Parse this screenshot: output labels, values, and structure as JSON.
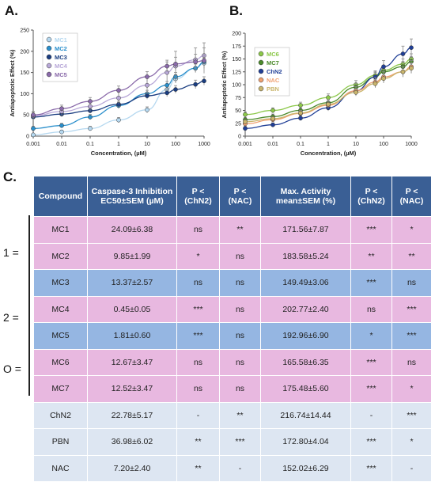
{
  "panels": {
    "a": "A.",
    "b": "B.",
    "c": "C."
  },
  "chart_data": [
    {
      "type": "line",
      "xscale": "log",
      "xlim": [
        0.001,
        1000
      ],
      "ylim": [
        0,
        250
      ],
      "xticks": [
        "0.001",
        "0.01",
        "0.1",
        "1",
        "10",
        "100",
        "1000"
      ],
      "yticks": [
        "0",
        "50",
        "100",
        "150",
        "200",
        "250"
      ],
      "xlabel": "Concentration, (µM)",
      "ylabel": "Antiapoptotic Effect (%)",
      "legend": "top-left",
      "x": [
        0.001,
        0.01,
        0.1,
        1,
        10,
        50,
        100,
        500,
        1000
      ],
      "series": [
        {
          "name": "MC1",
          "color": "#b5d8f0",
          "values": [
            3,
            10,
            18,
            38,
            62,
            110,
            135,
            160,
            172
          ],
          "errors": [
            3,
            4,
            5,
            6,
            7,
            9,
            10,
            10,
            12
          ]
        },
        {
          "name": "MC2",
          "color": "#2a8fcc",
          "values": [
            18,
            25,
            45,
            72,
            100,
            120,
            140,
            160,
            175
          ],
          "errors": [
            5,
            5,
            6,
            7,
            8,
            9,
            10,
            10,
            12
          ]
        },
        {
          "name": "MC3",
          "color": "#1a3d80",
          "values": [
            45,
            52,
            60,
            75,
            95,
            102,
            110,
            122,
            130
          ],
          "errors": [
            6,
            6,
            6,
            7,
            8,
            9,
            9,
            10,
            10
          ]
        },
        {
          "name": "MC4",
          "color": "#b8a8d8",
          "values": [
            48,
            58,
            70,
            90,
            120,
            150,
            165,
            180,
            190
          ],
          "errors": [
            10,
            10,
            12,
            14,
            18,
            25,
            35,
            28,
            30
          ]
        },
        {
          "name": "MC5",
          "color": "#8a6aaa",
          "values": [
            50,
            65,
            82,
            108,
            140,
            165,
            170,
            175,
            178
          ],
          "errors": [
            6,
            8,
            9,
            10,
            12,
            14,
            16,
            18,
            30
          ]
        }
      ]
    },
    {
      "type": "line",
      "xscale": "log",
      "xlim": [
        0.001,
        1000
      ],
      "ylim": [
        0,
        200
      ],
      "xticks": [
        "0.001",
        "0.01",
        "0.1",
        "1",
        "10",
        "100",
        "1000"
      ],
      "yticks": [
        "0",
        "25",
        "50",
        "75",
        "100",
        "125",
        "150",
        "175",
        "200"
      ],
      "xlabel": "Concentration, (µM)",
      "ylabel": "Antiapoptotic Effect (%)",
      "legend": "top-left",
      "x": [
        0.001,
        0.01,
        0.1,
        1,
        10,
        50,
        100,
        500,
        1000
      ],
      "series": [
        {
          "name": "MC6",
          "color": "#8cc84a",
          "values": [
            42,
            50,
            60,
            75,
            100,
            118,
            128,
            140,
            150
          ],
          "errors": [
            5,
            5,
            6,
            7,
            8,
            9,
            9,
            10,
            10
          ]
        },
        {
          "name": "MC7",
          "color": "#4a8a2a",
          "values": [
            32,
            38,
            50,
            65,
            95,
            115,
            125,
            135,
            145
          ],
          "errors": [
            4,
            5,
            5,
            6,
            8,
            9,
            9,
            10,
            10
          ]
        },
        {
          "name": "ChN2",
          "color": "#1f3e96",
          "values": [
            15,
            22,
            35,
            55,
            88,
            115,
            135,
            160,
            172
          ],
          "errors": [
            4,
            4,
            5,
            6,
            8,
            10,
            12,
            15,
            17
          ]
        },
        {
          "name": "NAC",
          "color": "#f0a070",
          "values": [
            24,
            32,
            44,
            60,
            88,
            105,
            115,
            125,
            135
          ],
          "errors": [
            4,
            4,
            5,
            6,
            8,
            9,
            10,
            10,
            12
          ]
        },
        {
          "name": "PBN",
          "color": "#c9b56c",
          "values": [
            28,
            34,
            45,
            62,
            85,
            102,
            112,
            125,
            132
          ],
          "errors": [
            4,
            4,
            5,
            6,
            7,
            8,
            9,
            10,
            10
          ]
        }
      ]
    }
  ],
  "table": {
    "headers": [
      "Compound",
      "Caspase-3 Inhibition EC50±SEM (µM)",
      "P < (ChN2)",
      "P < (NAC)",
      "Max. Activity mean±SEM (%)",
      "P < (ChN2)",
      "P < (NAC)"
    ],
    "rows": [
      [
        "MC1",
        "24.09±6.38",
        "ns",
        "**",
        "171.56±7.87",
        "***",
        "*"
      ],
      [
        "MC2",
        "9.85±1.99",
        "*",
        "ns",
        "183.58±5.24",
        "**",
        "**"
      ],
      [
        "MC3",
        "13.37±2.57",
        "ns",
        "ns",
        "149.49±3.06",
        "***",
        "ns"
      ],
      [
        "MC4",
        "0.45±0.05",
        "***",
        "ns",
        "202.77±2.40",
        "ns",
        "***"
      ],
      [
        "MC5",
        "1.81±0.60",
        "***",
        "ns",
        "192.96±6.90",
        "*",
        "***"
      ],
      [
        "MC6",
        "12.67±3.47",
        "ns",
        "ns",
        "165.58±6.35",
        "***",
        "ns"
      ],
      [
        "MC7",
        "12.52±3.47",
        "ns",
        "ns",
        "175.48±5.60",
        "***",
        "*"
      ],
      [
        "ChN2",
        "22.78±5.17",
        "-",
        "**",
        "216.74±14.44",
        "-",
        "***"
      ],
      [
        "PBN",
        "36.98±6.02",
        "**",
        "***",
        "172.80±4.04",
        "***",
        "*"
      ],
      [
        "NAC",
        "7.20±2.40",
        "**",
        "-",
        "152.02±6.29",
        "***",
        "-"
      ]
    ],
    "row_colors": [
      "pink",
      "pink",
      "blue",
      "pink",
      "blue",
      "pink",
      "pink",
      "light",
      "light",
      "light"
    ],
    "group_labels": [
      "1 =",
      "2 =",
      "O ="
    ]
  }
}
